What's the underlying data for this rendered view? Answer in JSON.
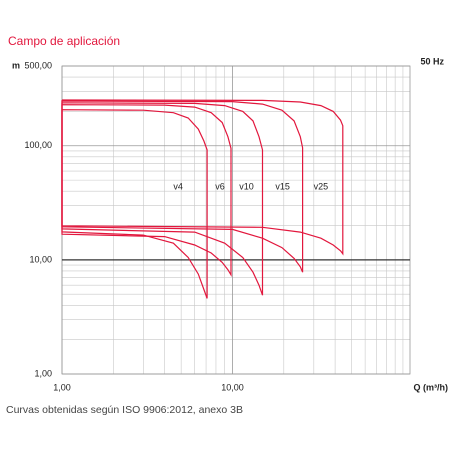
{
  "chart_data": {
    "type": "line",
    "title": "Campo de aplicación",
    "ylabel": "m",
    "xlabel": "Q (m³/h)",
    "note": "50 Hz",
    "caption": "Curvas obtenidas según ISO 9906:2012, anexo 3B",
    "log_x": true,
    "log_y": true,
    "grid": true,
    "xlim": [
      1,
      110
    ],
    "ylim": [
      1,
      500
    ],
    "xticks": [
      {
        "value": 1,
        "label": "1,00"
      },
      {
        "value": 10,
        "label": "10,00"
      }
    ],
    "yticks": [
      {
        "value": 1,
        "label": "1,00"
      },
      {
        "value": 10,
        "label": "10,00"
      },
      {
        "value": 100,
        "label": "100,00"
      },
      {
        "value": 500,
        "label": "500,00"
      }
    ],
    "xminor": [
      2,
      3,
      4,
      5,
      6,
      7,
      8,
      9,
      20,
      30,
      40,
      50,
      60,
      70,
      80,
      90,
      100
    ],
    "yminor": [
      2,
      3,
      4,
      5,
      6,
      7,
      8,
      9,
      20,
      30,
      40,
      50,
      60,
      70,
      80,
      90,
      200,
      300,
      400
    ],
    "hline": 10,
    "series": [
      {
        "name": "v4",
        "color": "#e2173d",
        "x": [
          1,
          3,
          4.5,
          5.5,
          6.3,
          6.8,
          7.1,
          7.1,
          6.8,
          6.3,
          5.5,
          4.5,
          3,
          1,
          1
        ],
        "y": [
          207,
          205,
          195,
          175,
          140,
          110,
          92,
          4.6,
          5.5,
          7.5,
          10.5,
          14,
          16.5,
          17.6,
          207
        ]
      },
      {
        "name": "v6",
        "color": "#e2173d",
        "x": [
          1,
          4,
          6,
          7.5,
          8.7,
          9.4,
          9.8,
          9.8,
          9.4,
          8.7,
          7.5,
          6,
          4,
          1,
          1
        ],
        "y": [
          229,
          227,
          218,
          195,
          160,
          120,
          95,
          7.4,
          8.2,
          9.5,
          11.5,
          13.5,
          16,
          16.8,
          229
        ]
      },
      {
        "name": "v10",
        "color": "#e2173d",
        "x": [
          1,
          6,
          9,
          11.5,
          13.2,
          14.3,
          15,
          15,
          14.3,
          13.2,
          11.5,
          9,
          6,
          1,
          1
        ],
        "y": [
          238,
          235,
          225,
          200,
          165,
          120,
          92,
          4.9,
          6,
          7.8,
          10.5,
          14,
          17.5,
          18.7,
          238
        ]
      },
      {
        "name": "v15",
        "color": "#e2173d",
        "x": [
          1,
          10,
          15,
          19.5,
          23,
          25,
          25.8,
          25.8,
          25,
          23,
          19.5,
          15,
          10,
          1,
          1
        ],
        "y": [
          247,
          244,
          232,
          205,
          165,
          120,
          96,
          7.8,
          8.7,
          10.3,
          12.8,
          15.5,
          18.5,
          19.5,
          247
        ]
      },
      {
        "name": "v25",
        "color": "#e2173d",
        "x": [
          1,
          15,
          25,
          33,
          39,
          43,
          44.4,
          44.4,
          43,
          39,
          33,
          25,
          15,
          1,
          1
        ],
        "y": [
          252,
          250,
          242,
          225,
          200,
          168,
          150,
          11.3,
          12,
          13.5,
          15.5,
          17.5,
          19.3,
          19.9,
          252
        ]
      }
    ]
  }
}
